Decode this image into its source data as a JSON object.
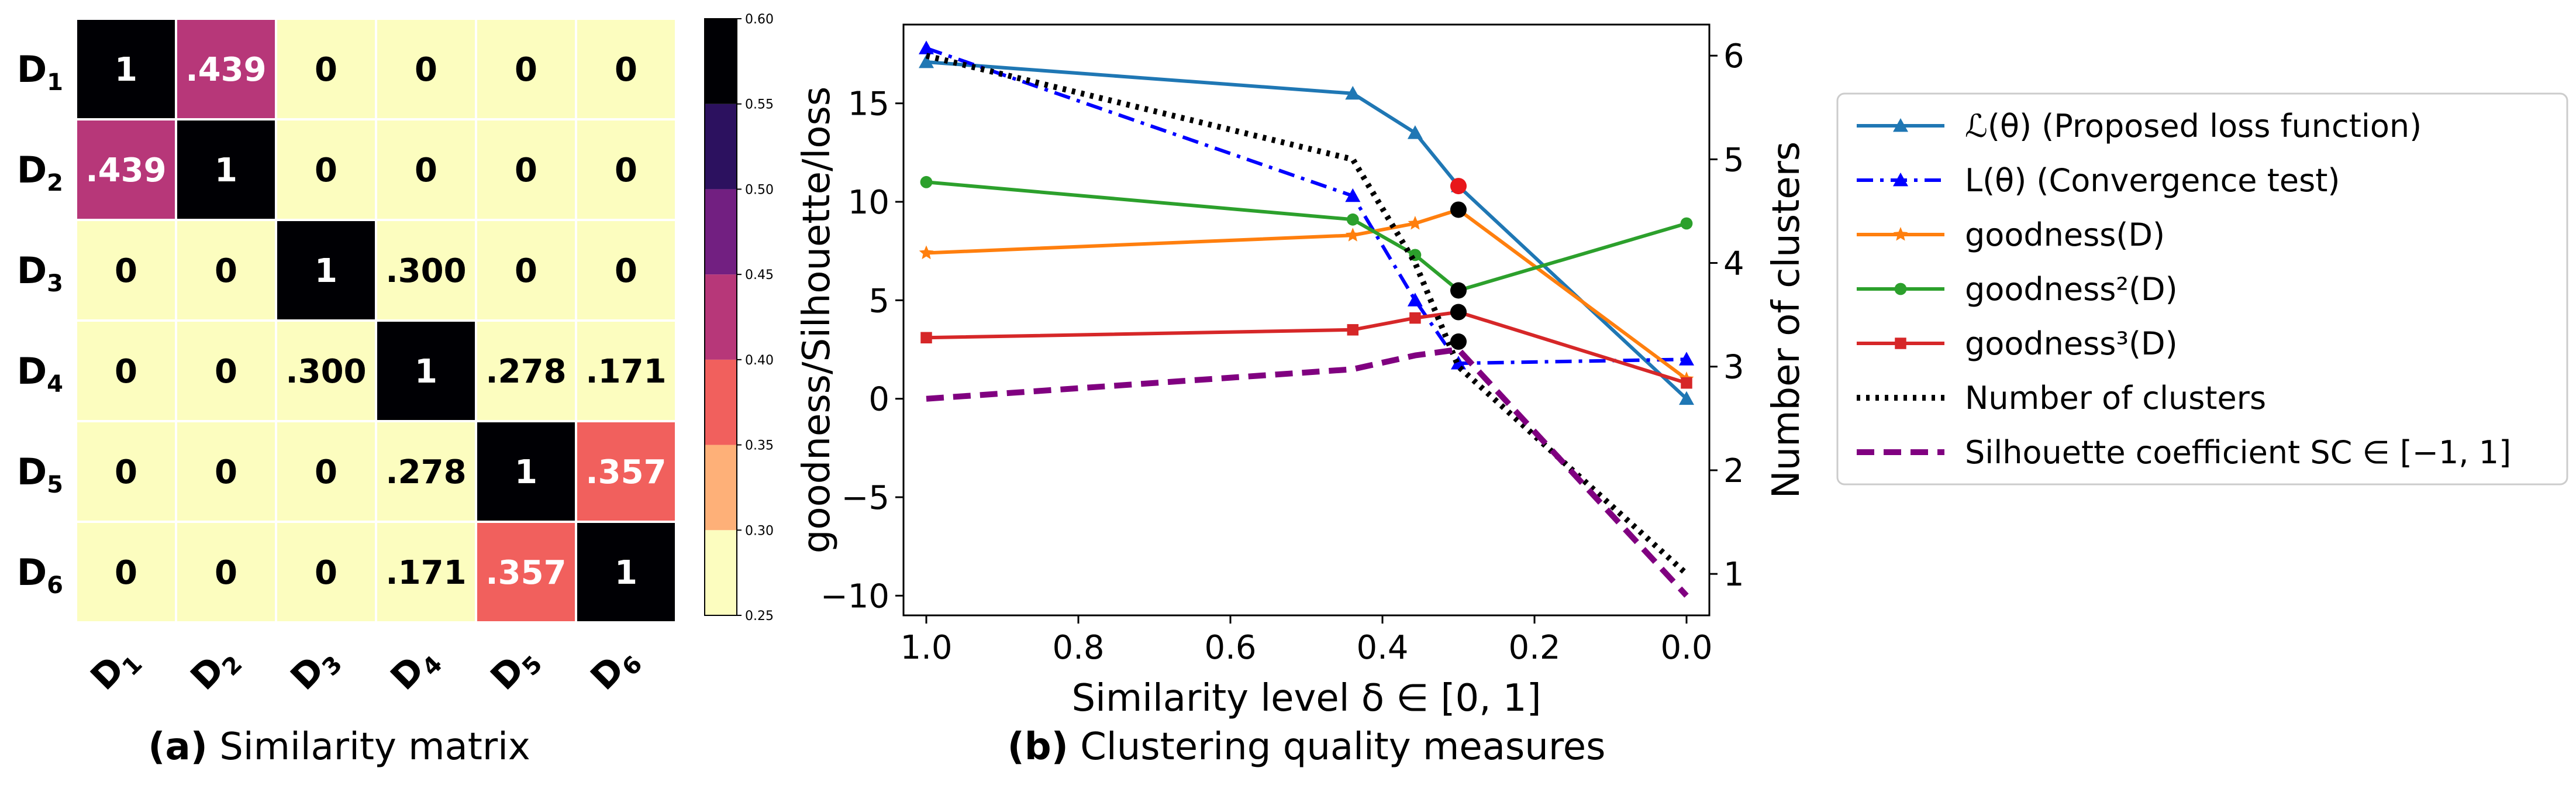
{
  "chart_data": [
    {
      "type": "heatmap",
      "row_labels": [
        "D",
        "D",
        "D",
        "D",
        "D",
        "D"
      ],
      "row_subscripts": [
        "1",
        "2",
        "3",
        "4",
        "5",
        "6"
      ],
      "col_labels": [
        "D",
        "D",
        "D",
        "D",
        "D",
        "D"
      ],
      "col_subscripts": [
        "1",
        "2",
        "3",
        "4",
        "5",
        "6"
      ],
      "values": [
        [
          1,
          0.439,
          0,
          0,
          0,
          0
        ],
        [
          0.439,
          1,
          0,
          0,
          0,
          0
        ],
        [
          0,
          0,
          1,
          0.3,
          0,
          0
        ],
        [
          0,
          0,
          0.3,
          1,
          0.278,
          0.171
        ],
        [
          0,
          0,
          0,
          0.278,
          1,
          0.357
        ],
        [
          0,
          0,
          0,
          0.171,
          0.357,
          1
        ]
      ],
      "cell_labels": [
        [
          "1",
          ".439",
          "0",
          "0",
          "0",
          "0"
        ],
        [
          ".439",
          "1",
          "0",
          "0",
          "0",
          "0"
        ],
        [
          "0",
          "0",
          "1",
          ".300",
          "0",
          "0"
        ],
        [
          "0",
          "0",
          ".300",
          "1",
          ".278",
          ".171"
        ],
        [
          "0",
          "0",
          "0",
          ".278",
          "1",
          ".357"
        ],
        [
          "0",
          "0",
          "0",
          ".171",
          ".357",
          "1"
        ]
      ],
      "colorbar": {
        "min": 0.25,
        "max": 0.6,
        "ticks": [
          "0.60",
          "0.55",
          "0.50",
          "0.45",
          "0.40",
          "0.35",
          "0.30",
          "0.25"
        ],
        "bands": [
          "#fcfdbf",
          "#feb078",
          "#f1605d",
          "#b73779",
          "#721f81",
          "#2c115f",
          "#000004"
        ]
      },
      "caption_bold": "(a)",
      "caption": " Similarity matrix"
    },
    {
      "type": "line",
      "title": "",
      "xlabel": "Similarity level δ ∈ [0, 1]",
      "ylabel_left": "goodness/Silhouette/loss",
      "ylabel_right": "Number of clusters",
      "xlim": [
        1.03,
        -0.03
      ],
      "ylim_left": [
        -11,
        19
      ],
      "ylim_right": [
        0.6,
        6.3
      ],
      "x_ticks": [
        "1.0",
        "0.8",
        "0.6",
        "0.4",
        "0.2",
        "0.0"
      ],
      "y_ticks_left": [
        "15",
        "10",
        "5",
        "0",
        "−5",
        "−10"
      ],
      "y_ticks_right": [
        "6",
        "5",
        "4",
        "3",
        "2",
        "1"
      ],
      "series": [
        {
          "name": "ℒ(θ) (Proposed loss function)",
          "axis": "left",
          "color": "#1f77b4",
          "marker": "triangle",
          "dash": "solid",
          "x": [
            1.0,
            0.439,
            0.357,
            0.3,
            0.0
          ],
          "y": [
            17.1,
            15.5,
            13.5,
            10.8,
            0.0
          ]
        },
        {
          "name": "L(θ) (Convergence test)",
          "axis": "left",
          "color": "#0000ff",
          "marker": "triangle",
          "dash": "dashdot",
          "x": [
            1.0,
            0.439,
            0.357,
            0.3,
            0.0
          ],
          "y": [
            17.8,
            10.3,
            5.0,
            1.8,
            2.0
          ]
        },
        {
          "name": "goodness(D)",
          "axis": "left",
          "color": "#ff7f0e",
          "marker": "star",
          "dash": "solid",
          "x": [
            1.0,
            0.439,
            0.357,
            0.3,
            0.0
          ],
          "y": [
            7.4,
            8.3,
            8.9,
            9.6,
            1.0
          ]
        },
        {
          "name": "goodness²(D)",
          "axis": "left",
          "color": "#2ca02c",
          "marker": "circle",
          "dash": "solid",
          "x": [
            1.0,
            0.439,
            0.357,
            0.3,
            0.0
          ],
          "y": [
            11.0,
            9.1,
            7.3,
            5.5,
            8.9
          ]
        },
        {
          "name": "goodness³(D)",
          "axis": "left",
          "color": "#d62728",
          "marker": "square",
          "dash": "solid",
          "x": [
            1.0,
            0.439,
            0.357,
            0.3,
            0.0
          ],
          "y": [
            3.1,
            3.5,
            4.1,
            4.4,
            0.8
          ]
        },
        {
          "name": "Number of clusters",
          "axis": "right",
          "color": "#000000",
          "marker": "none",
          "dash": "dotted",
          "x": [
            1.0,
            0.439,
            0.357,
            0.3,
            0.0
          ],
          "y": [
            6,
            5,
            4,
            3,
            1
          ]
        },
        {
          "name": "Silhouette coefficient SC ∈ [−1, 1]",
          "axis": "left",
          "color": "#800080",
          "marker": "none",
          "dash": "dashed",
          "x": [
            1.0,
            0.439,
            0.357,
            0.3,
            0.0
          ],
          "y": [
            0.0,
            1.5,
            2.2,
            2.5,
            -10.0
          ]
        }
      ],
      "highlight_points": [
        {
          "x": 0.3,
          "y": 10.8,
          "color": "#e8171b"
        },
        {
          "x": 0.3,
          "y": 9.6,
          "color": "#000000"
        },
        {
          "x": 0.3,
          "y": 5.5,
          "color": "#000000"
        },
        {
          "x": 0.3,
          "y": 4.4,
          "color": "#000000"
        },
        {
          "x": 0.3,
          "y": 2.9,
          "color": "#000000"
        }
      ],
      "legend_position": "right (outside)",
      "caption_bold": "(b)",
      "caption": " Clustering quality measures"
    }
  ]
}
